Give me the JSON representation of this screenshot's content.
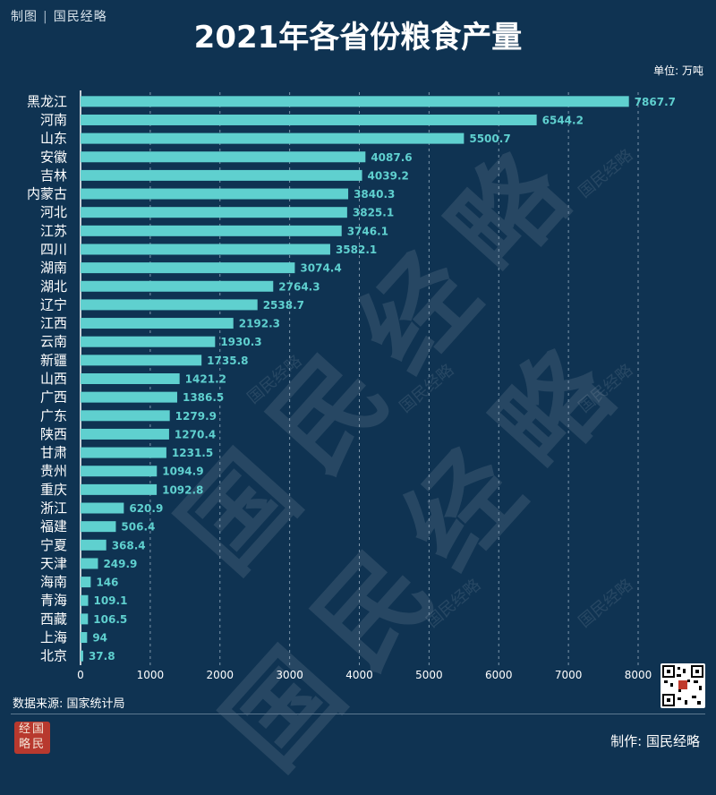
{
  "brand": {
    "left": "制图",
    "right": "国民经略"
  },
  "title": "2021年各省份粮食产量",
  "unit_label": "单位: 万吨",
  "source_label": "数据来源: 国家统计局",
  "made_by": "制作: 国民经略",
  "seal_text": "经国略民",
  "watermark_text": "国民经略",
  "colors": {
    "background": "#0f3352",
    "bar": "#5fd0cf",
    "label": "#5fd0cf",
    "grid": "#7f96aa"
  },
  "chart_data": {
    "type": "bar",
    "orientation": "horizontal",
    "title": "2021年各省份粮食产量",
    "unit": "万吨",
    "xlim": [
      0,
      8000
    ],
    "xticks": [
      0,
      1000,
      2000,
      3000,
      4000,
      5000,
      6000,
      7000,
      8000
    ],
    "grid": "vertical dashed",
    "categories": [
      "黑龙江",
      "河南",
      "山东",
      "安徽",
      "吉林",
      "内蒙古",
      "河北",
      "江苏",
      "四川",
      "湖南",
      "湖北",
      "辽宁",
      "江西",
      "云南",
      "新疆",
      "山西",
      "广西",
      "广东",
      "陕西",
      "甘肃",
      "贵州",
      "重庆",
      "浙江",
      "福建",
      "宁夏",
      "天津",
      "海南",
      "青海",
      "西藏",
      "上海",
      "北京"
    ],
    "values": [
      7867.7,
      6544.2,
      5500.7,
      4087.6,
      4039.2,
      3840.3,
      3825.1,
      3746.1,
      3582.1,
      3074.4,
      2764.3,
      2538.7,
      2192.3,
      1930.3,
      1735.8,
      1421.2,
      1386.5,
      1279.9,
      1270.4,
      1231.5,
      1094.9,
      1092.8,
      620.9,
      506.4,
      368.4,
      249.9,
      146,
      109.1,
      106.5,
      94,
      37.8
    ],
    "labels": [
      "7867.7",
      "6544.2",
      "5500.7",
      "4087.6",
      "4039.2",
      "3840.3",
      "3825.1",
      "3746.1",
      "3582.1",
      "3074.4",
      "2764.3",
      "2538.7",
      "2192.3",
      "1930.3",
      "1735.8",
      "1421.2",
      "1386.5",
      "1279.9",
      "1270.4",
      "1231.5",
      "1094.9",
      "1092.8",
      "620.9",
      "506.4",
      "368.4",
      "249.9",
      "146",
      "109.1",
      "106.5",
      "94",
      "37.8"
    ]
  }
}
